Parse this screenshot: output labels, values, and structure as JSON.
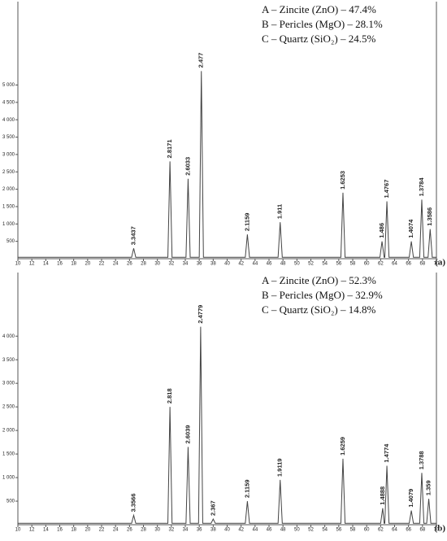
{
  "chart_data": [
    {
      "type": "line",
      "panel_label": "(a)",
      "color": "#444",
      "notes": [
        "A – Zincite (ZnO) – 47.4%",
        "B – Pericles (MgO) – 28.1%",
        "C – Quartz (SiO₂) – 24.5%"
      ],
      "x": [
        10,
        26.3,
        26.6,
        26.9,
        31.5,
        31.8,
        32.1,
        34.1,
        34.4,
        34.7,
        36.0,
        36.3,
        36.6,
        42.6,
        42.9,
        43.2,
        47.3,
        47.6,
        47.9,
        56.3,
        56.6,
        56.9,
        61.9,
        62.2,
        62.5,
        62.6,
        62.9,
        63.2,
        66.1,
        66.4,
        66.7,
        67.6,
        67.9,
        68.2,
        68.8,
        69.1,
        69.4,
        70
      ],
      "values": [
        40,
        40,
        300,
        40,
        40,
        2800,
        40,
        40,
        2300,
        40,
        40,
        5400,
        40,
        40,
        700,
        40,
        40,
        1050,
        40,
        40,
        1900,
        40,
        40,
        500,
        40,
        40,
        1650,
        40,
        40,
        500,
        40,
        40,
        1700,
        40,
        40,
        850,
        40,
        40
      ],
      "annotations": [
        {
          "x": 26.6,
          "y": 300,
          "text": "3.3437"
        },
        {
          "x": 31.8,
          "y": 2800,
          "text": "2.8171"
        },
        {
          "x": 34.4,
          "y": 2300,
          "text": "2.6033"
        },
        {
          "x": 36.3,
          "y": 5400,
          "text": "2.477"
        },
        {
          "x": 42.9,
          "y": 700,
          "text": "2.1159"
        },
        {
          "x": 47.6,
          "y": 1050,
          "text": "1.911"
        },
        {
          "x": 56.6,
          "y": 1900,
          "text": "1.6253"
        },
        {
          "x": 62.2,
          "y": 500,
          "text": "1.486"
        },
        {
          "x": 62.9,
          "y": 1650,
          "text": "1.4767"
        },
        {
          "x": 66.4,
          "y": 500,
          "text": "1.4074"
        },
        {
          "x": 67.9,
          "y": 1700,
          "text": "1.3784"
        },
        {
          "x": 69.1,
          "y": 850,
          "text": "1.3586"
        }
      ],
      "xlim": [
        10,
        70
      ],
      "xticks": [
        10,
        12,
        14,
        16,
        18,
        20,
        22,
        24,
        26,
        28,
        30,
        32,
        34,
        36,
        38,
        40,
        42,
        44,
        46,
        48,
        50,
        52,
        54,
        56,
        58,
        60,
        62,
        64,
        66,
        68,
        70
      ],
      "ylim": [
        0,
        7400
      ],
      "yticks": [
        500,
        {
          "value": 1000,
          "label": "1 000"
        },
        {
          "value": 1500,
          "label": "1 500"
        },
        {
          "value": 2000,
          "label": "2 000"
        },
        {
          "value": 2500,
          "label": "2 500"
        },
        {
          "value": 3000,
          "label": "3 000"
        },
        {
          "value": 3500,
          "label": "3 500"
        },
        {
          "value": 4000,
          "label": "4 000"
        },
        {
          "value": 4500,
          "label": "4 500"
        },
        {
          "value": 5000,
          "label": "5 000"
        }
      ]
    },
    {
      "type": "line",
      "panel_label": "(b)",
      "color": "#444",
      "notes": [
        "A – Zincite (ZnO) – 52.3%",
        "B – Pericles (MgO) – 32.9%",
        "C – Quartz (SiO₂) – 14.8%"
      ],
      "x": [
        10,
        26.3,
        26.6,
        26.9,
        31.5,
        31.8,
        32.1,
        34.1,
        34.4,
        34.7,
        35.9,
        36.2,
        36.5,
        37.7,
        38.0,
        38.3,
        42.6,
        42.9,
        43.2,
        47.3,
        47.6,
        47.9,
        56.3,
        56.6,
        56.9,
        62.0,
        62.3,
        62.5,
        62.6,
        62.9,
        63.2,
        66.1,
        66.4,
        66.7,
        67.6,
        67.9,
        68.2,
        68.6,
        68.9,
        69.2,
        70
      ],
      "values": [
        30,
        30,
        200,
        30,
        30,
        2500,
        30,
        30,
        1650,
        30,
        30,
        4200,
        30,
        30,
        120,
        30,
        30,
        500,
        30,
        30,
        950,
        30,
        30,
        1400,
        30,
        30,
        350,
        30,
        30,
        1250,
        30,
        30,
        300,
        30,
        30,
        1100,
        30,
        30,
        550,
        30,
        30
      ],
      "annotations": [
        {
          "x": 26.6,
          "y": 200,
          "text": "3.3566"
        },
        {
          "x": 31.8,
          "y": 2500,
          "text": "2.818"
        },
        {
          "x": 34.4,
          "y": 1650,
          "text": "2.6039"
        },
        {
          "x": 36.2,
          "y": 4200,
          "text": "2.4779"
        },
        {
          "x": 38.0,
          "y": 120,
          "text": "2.367"
        },
        {
          "x": 42.9,
          "y": 500,
          "text": "2.1159"
        },
        {
          "x": 47.6,
          "y": 950,
          "text": "1.9119"
        },
        {
          "x": 56.6,
          "y": 1400,
          "text": "1.6259"
        },
        {
          "x": 62.3,
          "y": 350,
          "text": "1.4888"
        },
        {
          "x": 62.9,
          "y": 1250,
          "text": "1.4774"
        },
        {
          "x": 66.4,
          "y": 300,
          "text": "1.4079"
        },
        {
          "x": 67.9,
          "y": 1100,
          "text": "1.3788"
        },
        {
          "x": 68.9,
          "y": 550,
          "text": "1.359"
        }
      ],
      "xlim": [
        10,
        70
      ],
      "xticks": [
        10,
        12,
        14,
        16,
        18,
        20,
        22,
        24,
        26,
        28,
        30,
        32,
        34,
        36,
        38,
        40,
        42,
        44,
        46,
        48,
        50,
        52,
        54,
        56,
        58,
        60,
        62,
        64,
        66,
        68,
        70
      ],
      "ylim": [
        0,
        5350
      ],
      "yticks": [
        500,
        {
          "value": 1000,
          "label": "1 000"
        },
        {
          "value": 1500,
          "label": "1 500"
        },
        {
          "value": 2000,
          "label": "2 000"
        },
        {
          "value": 2500,
          "label": "2 500"
        },
        {
          "value": 3000,
          "label": "3 000"
        },
        {
          "value": 3500,
          "label": "3 500"
        },
        {
          "value": 4000,
          "label": "4 000"
        }
      ]
    }
  ]
}
